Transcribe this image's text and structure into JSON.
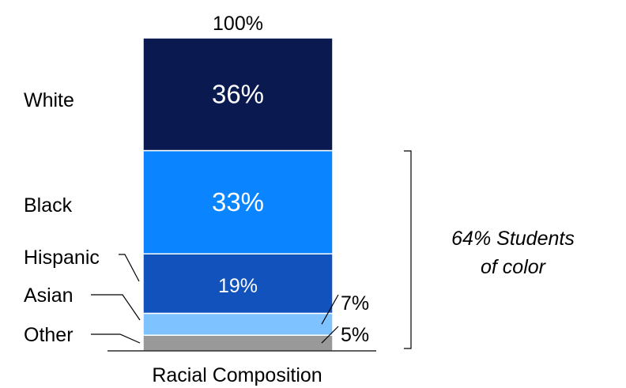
{
  "chart_data": {
    "type": "bar",
    "stacked": true,
    "categories": [
      "Racial Composition"
    ],
    "series": [
      {
        "name": "Other",
        "values": [
          5
        ],
        "label": "5%",
        "color": "#999999"
      },
      {
        "name": "Asian",
        "values": [
          7
        ],
        "label": "7%",
        "color": "#7ec3ff"
      },
      {
        "name": "Hispanic",
        "values": [
          19
        ],
        "label": "19%",
        "color": "#1152bd"
      },
      {
        "name": "Black",
        "values": [
          33
        ],
        "label": "33%",
        "color": "#0a84ff"
      },
      {
        "name": "White",
        "values": [
          36
        ],
        "label": "36%",
        "color": "#0a1a50"
      }
    ],
    "total_label": "100%",
    "xlabel": "Racial Composition",
    "bracket_annotation": {
      "line1": "64% Students",
      "line2": "of color",
      "covers": [
        "Black",
        "Hispanic",
        "Asian",
        "Other"
      ]
    },
    "ylim": [
      0,
      100
    ],
    "grid": false,
    "legend": "none"
  }
}
